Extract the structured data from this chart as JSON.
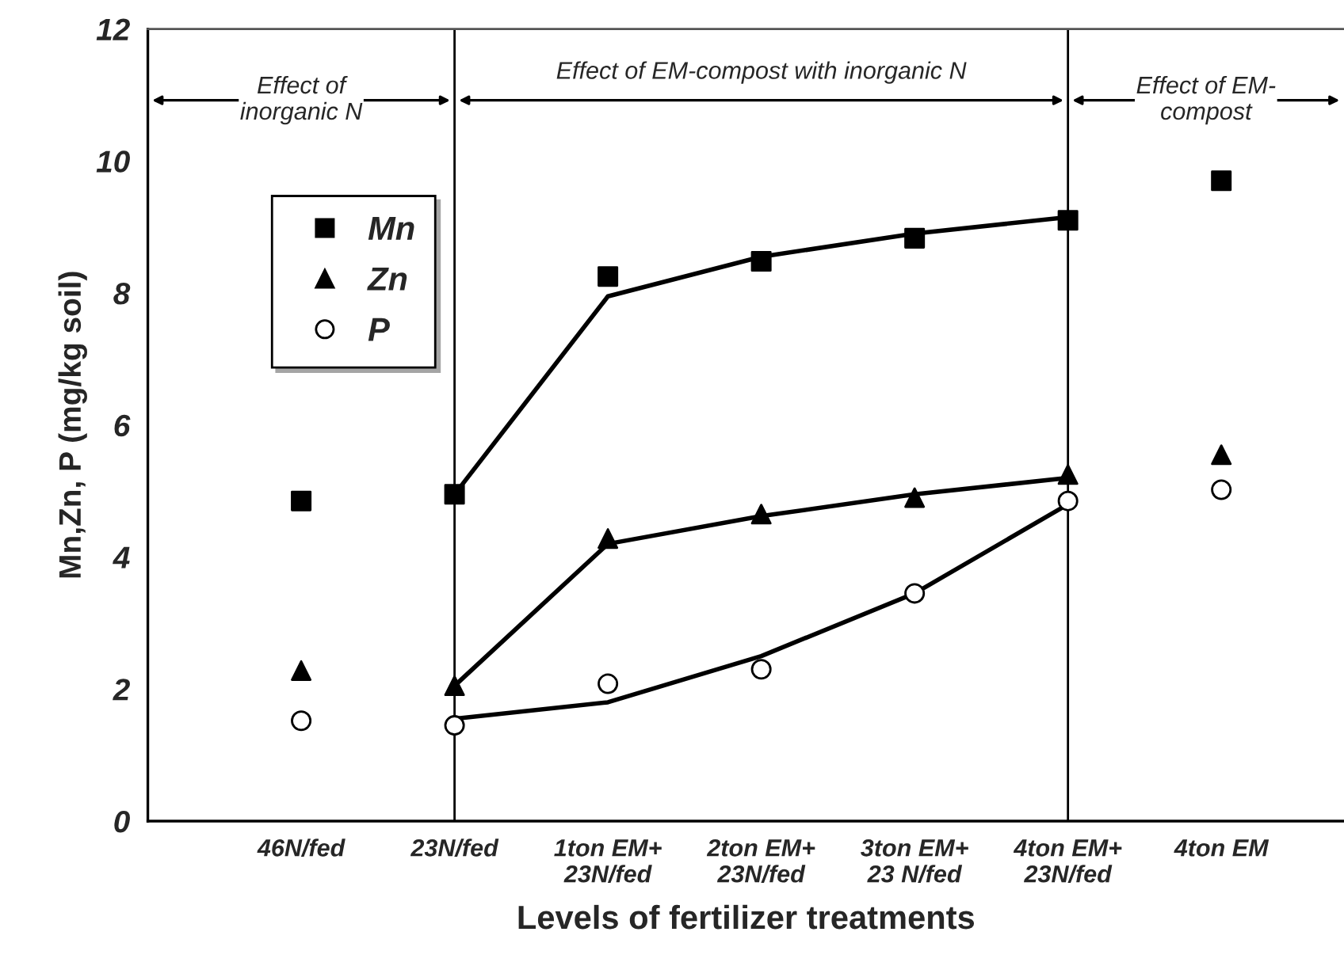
{
  "chart_data": {
    "type": "scatter",
    "xlabel": "Levels of fertilizer treatments",
    "ylabel": "Mn,Zn, P (mg/kg soil)",
    "ylim": [
      0,
      12
    ],
    "yticks": [
      0,
      2,
      4,
      6,
      8,
      10,
      12
    ],
    "categories": [
      "46N/fed",
      "23N/fed",
      "1ton EM+\n23N/fed",
      "2ton EM+\n23N/fed",
      "3ton EM+\n23 N/fed",
      "4ton EM+\n23N/fed",
      "4ton EM"
    ],
    "grid": false,
    "legend": "top left",
    "series": [
      {
        "name": "Mn",
        "marker": "square",
        "color": "#000000",
        "values": [
          4.85,
          4.95,
          8.25,
          8.48,
          8.83,
          9.1,
          9.7
        ]
      },
      {
        "name": "Zn",
        "marker": "triangle",
        "color": "#000000",
        "values": [
          2.28,
          2.05,
          4.28,
          4.65,
          4.9,
          5.25,
          5.55
        ]
      },
      {
        "name": "P",
        "marker": "circle",
        "color": "#ffffff",
        "values": [
          1.52,
          1.45,
          2.08,
          2.3,
          3.45,
          4.85,
          5.02
        ]
      },
      {
        "type": "line",
        "color": "#000000",
        "values": [
          null,
          4.95,
          7.95,
          8.55,
          8.9,
          9.15,
          null
        ]
      },
      {
        "type": "line",
        "color": "#000000",
        "values": [
          null,
          2.05,
          4.2,
          4.62,
          4.95,
          5.2,
          null
        ]
      },
      {
        "type": "line",
        "color": "#000000",
        "values": [
          null,
          1.55,
          1.8,
          2.5,
          3.45,
          4.8,
          null
        ]
      }
    ],
    "ref_lines": [
      {
        "axis": "x",
        "value": "23N/fed",
        "color": "#000000"
      },
      {
        "axis": "x",
        "value": "4ton EM+\n23N/fed",
        "color": "#000000"
      }
    ],
    "annotations": [
      "Effect of\ninorganic N",
      "Effect of EM-compost with inorganic N",
      "Effect of EM-\ncompost"
    ]
  }
}
